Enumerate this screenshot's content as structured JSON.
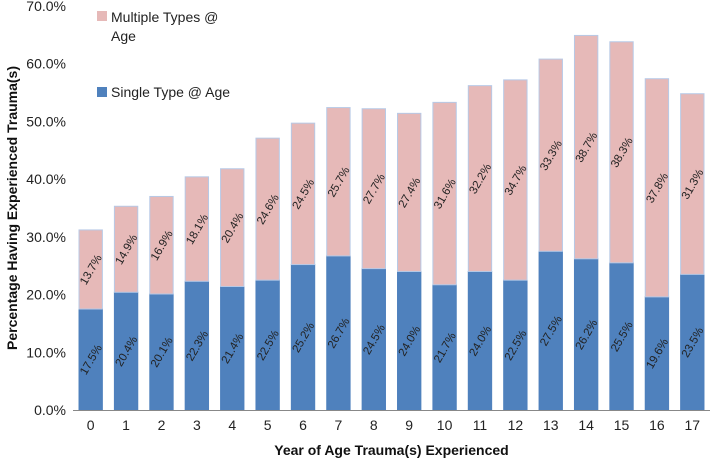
{
  "chart_data": {
    "type": "bar",
    "stacked": true,
    "title": "",
    "xlabel": "Year of Age Trauma(s) Experienced",
    "ylabel": "Percentage Having Experienced Trauma(s)",
    "ylim": [
      0,
      70
    ],
    "yticks": [
      0,
      10,
      20,
      30,
      40,
      50,
      60,
      70
    ],
    "ytick_labels": [
      "0.0%",
      "10.0%",
      "20.0%",
      "30.0%",
      "40.0%",
      "50.0%",
      "60.0%",
      "70.0%"
    ],
    "categories": [
      "0",
      "1",
      "2",
      "3",
      "4",
      "5",
      "6",
      "7",
      "8",
      "9",
      "10",
      "11",
      "12",
      "13",
      "14",
      "15",
      "16",
      "17"
    ],
    "series": [
      {
        "name": "Single Type @ Age",
        "color": "#4F81BD",
        "values": [
          17.5,
          20.4,
          20.1,
          22.3,
          21.4,
          22.5,
          25.2,
          26.7,
          24.5,
          24.0,
          21.7,
          24.0,
          22.5,
          27.5,
          26.2,
          25.5,
          19.6,
          23.5
        ],
        "labels": [
          "17.5%",
          "20.4%",
          "20.1%",
          "22.3%",
          "21.4%",
          "22.5%",
          "25.2%",
          "26.7%",
          "24.5%",
          "24.0%",
          "21.7%",
          "24.0%",
          "22.5%",
          "27.5%",
          "26.2%",
          "25.5%",
          "19.6%",
          "23.5%"
        ]
      },
      {
        "name": "Multiple Types @ Age",
        "color": "#E6B9B8",
        "values": [
          13.7,
          14.9,
          16.9,
          18.1,
          20.4,
          24.6,
          24.5,
          25.7,
          27.7,
          27.4,
          31.6,
          32.2,
          34.7,
          33.3,
          38.7,
          38.3,
          37.8,
          31.3
        ],
        "labels": [
          "13.7%",
          "14.9%",
          "16.9%",
          "18.1%",
          "20.4%",
          "24.6%",
          "24.5%",
          "25.7%",
          "27.7%",
          "27.4%",
          "31.6%",
          "32.2%",
          "34.7%",
          "33.3%",
          "38.7%",
          "38.3%",
          "37.8%",
          "31.3%"
        ]
      }
    ],
    "legend": {
      "placement": "top-left",
      "entries": [
        {
          "lines": [
            "Multiple Types @",
            "Age"
          ],
          "color": "#E6B9B8"
        },
        {
          "lines": [
            "Single Type @ Age"
          ],
          "color": "#4F81BD"
        }
      ]
    }
  }
}
